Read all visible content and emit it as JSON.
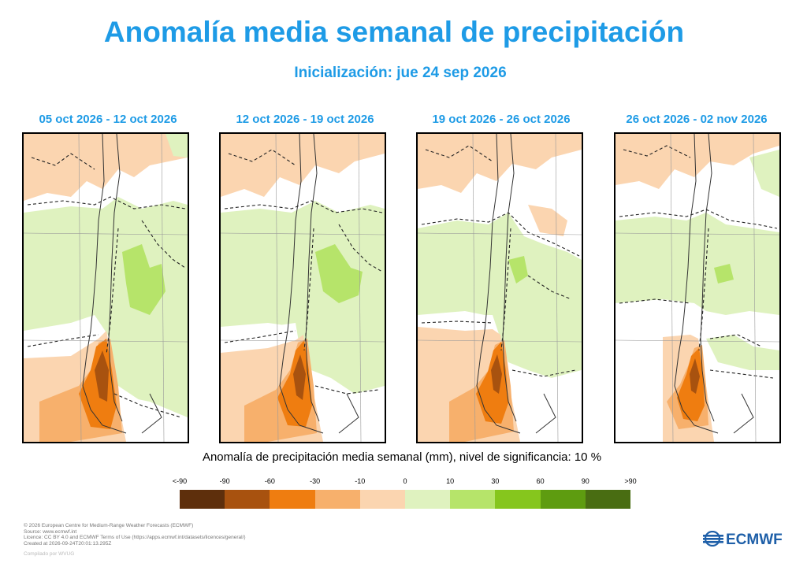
{
  "header": {
    "title": "Anomalía media semanal de precipitación",
    "subtitle": "Inicialización: jue 24 sep 2026"
  },
  "panels": [
    {
      "label": "05 oct 2026 - 12 oct 2026"
    },
    {
      "label": "12 oct 2026 - 19 oct 2026"
    },
    {
      "label": "19 oct 2026 - 26 oct 2026"
    },
    {
      "label": "26 oct 2026 - 02 nov 2026"
    }
  ],
  "legend": {
    "caption": "Anomalía de precipitación media semanal (mm), nivel de significancia: 10 %",
    "labels": [
      "<-90",
      "-90",
      "-60",
      "-30",
      "-10",
      "0",
      "10",
      "30",
      "60",
      "90",
      ">90"
    ],
    "colors": [
      "#5e2f0c",
      "#a8520f",
      "#ef7d10",
      "#f7b06c",
      "#fbd5b0",
      "#dff2bf",
      "#b6e46a",
      "#86c61d",
      "#5e9c10",
      "#496d12"
    ]
  },
  "footer": {
    "lines": [
      "© 2026 European Centre for Medium-Range Weather Forecasts (ECMWF)",
      "Source: www.ecmwf.int",
      "Licence: CC BY 4.0 and ECMWF Terms of Use (https://apps.ecmwf.int/datasets/licences/general/)",
      "Created at 2026-09-24T20:01:13.295Z"
    ],
    "compiled_by": "Compilado por WVUG"
  },
  "logo": {
    "text": "ECMWF"
  }
}
